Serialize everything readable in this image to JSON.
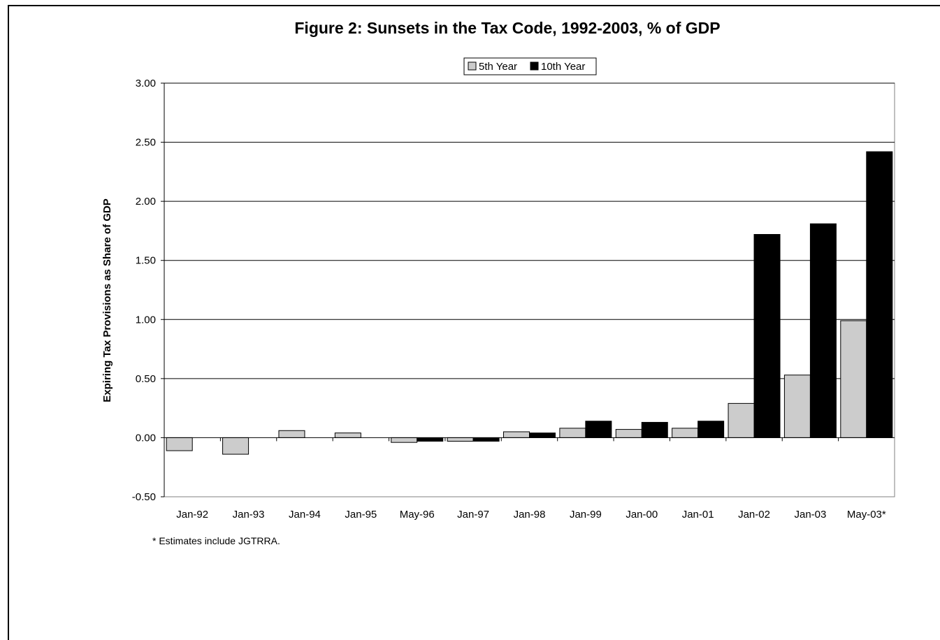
{
  "chart_data": {
    "type": "bar",
    "title": "Figure 2: Sunsets in the Tax Code, 1992-2003, % of GDP",
    "xlabel": "",
    "ylabel": "Expiring Tax Provisions as Share of GDP",
    "ylim": [
      -0.5,
      3.0
    ],
    "yticks": [
      -0.5,
      0.0,
      0.5,
      1.0,
      1.5,
      2.0,
      2.5,
      3.0
    ],
    "ytick_labels": [
      "-0.50",
      "0.00",
      "0.50",
      "1.00",
      "1.50",
      "2.00",
      "2.50",
      "3.00"
    ],
    "grid": true,
    "legend": "top-center",
    "categories": [
      "Jan-92",
      "Jan-93",
      "Jan-94",
      "Jan-95",
      "May-96",
      "Jan-97",
      "Jan-98",
      "Jan-99",
      "Jan-00",
      "Jan-01",
      "Jan-02",
      "Jan-03",
      "May-03*"
    ],
    "series": [
      {
        "name": "5th Year",
        "color": "#cccccc",
        "values": [
          -0.11,
          -0.14,
          0.06,
          0.04,
          -0.04,
          -0.03,
          0.05,
          0.08,
          0.07,
          0.08,
          0.29,
          0.53,
          0.99
        ]
      },
      {
        "name": "10th Year",
        "color": "#000000",
        "values": [
          0.0,
          0.0,
          0.0,
          0.0,
          -0.03,
          -0.03,
          0.04,
          0.14,
          0.13,
          0.14,
          1.72,
          1.81,
          2.42
        ]
      }
    ],
    "footnote": "* Estimates include JGTRRA."
  }
}
